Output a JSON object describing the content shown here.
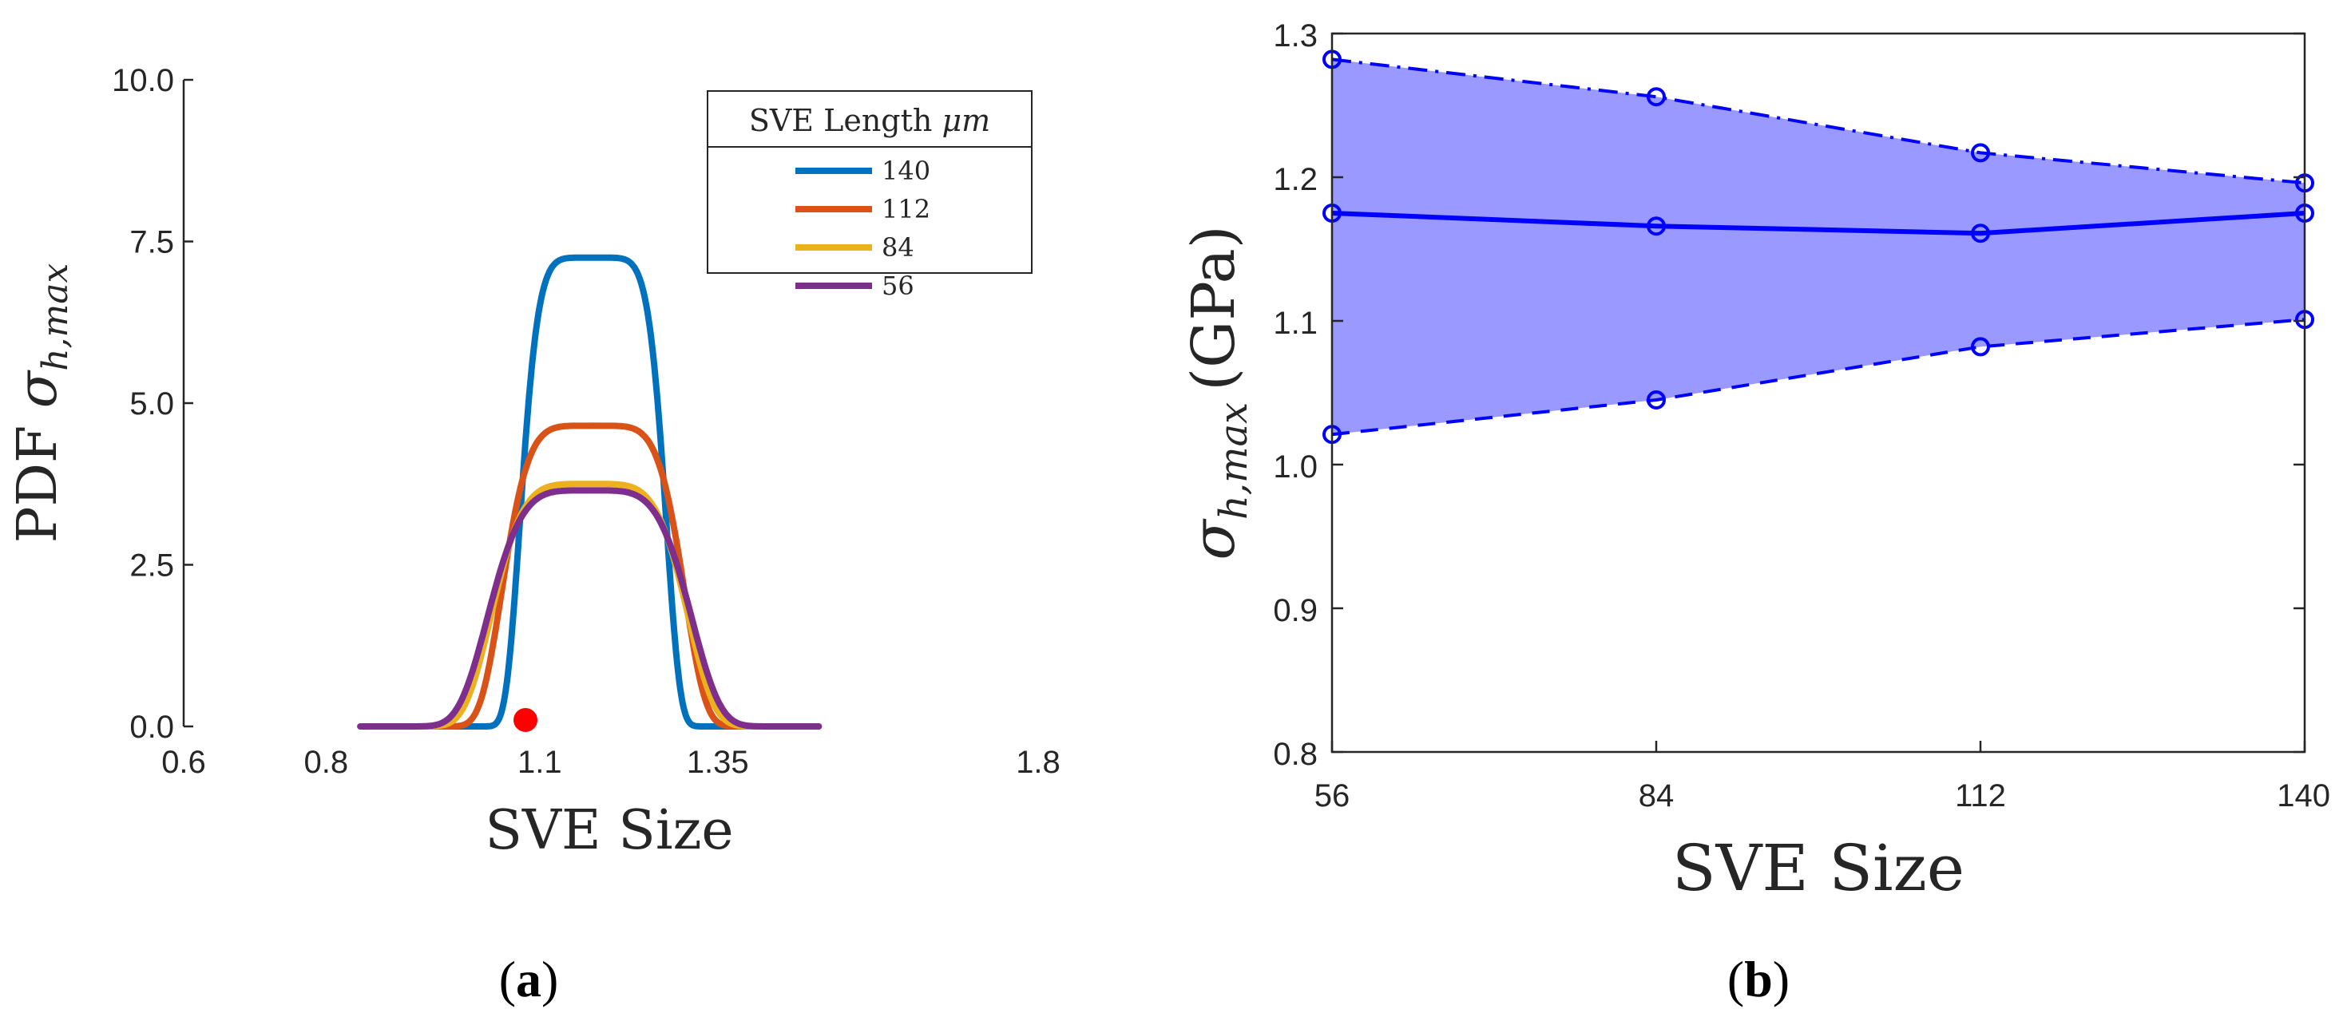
{
  "chart_data": [
    {
      "type": "line",
      "panel": "a",
      "panel_label": "a",
      "title": "",
      "xlabel": "SVE Size",
      "ylabel_prefix": "PDF ",
      "ylabel_symbol": "σ",
      "ylabel_subscript": "h,max",
      "xlim": [
        0.6,
        1.8
      ],
      "ylim": [
        0,
        10
      ],
      "xticks": [
        0.6,
        0.8,
        1.1,
        1.35,
        1.8
      ],
      "xtick_labels": [
        "0.6",
        "0.8",
        "1.1",
        "1.35",
        "1.8"
      ],
      "yticks": [
        0,
        2.5,
        5,
        7.5,
        10
      ],
      "ytick_labels": [
        "0.0",
        "2.5",
        "5.0",
        "7.5",
        "10.0"
      ],
      "legend": {
        "title_prefix": "SVE Length ",
        "title_unit": "μm",
        "placement": "top-right"
      },
      "series": [
        {
          "name": "140",
          "color": "#0072BD",
          "center": 1.175,
          "half_width": 0.1,
          "sharpness": 3.2,
          "peak": 7.25
        },
        {
          "name": "112",
          "color": "#D95319",
          "center": 1.175,
          "half_width": 0.125,
          "sharpness": 2.7,
          "peak": 4.65
        },
        {
          "name": "84",
          "color": "#EDB120",
          "center": 1.17,
          "half_width": 0.135,
          "sharpness": 2.4,
          "peak": 3.75
        },
        {
          "name": "56",
          "color": "#7E2F8E",
          "center": 1.17,
          "half_width": 0.14,
          "sharpness": 2.3,
          "peak": 3.65
        }
      ],
      "marker": {
        "x": 1.08,
        "y": 0.05,
        "color": "#FF0000"
      }
    },
    {
      "type": "area",
      "panel": "b",
      "panel_label": "b",
      "title": "",
      "xlabel": "SVE Size",
      "ylabel_symbol": "σ",
      "ylabel_subscript": "h,max",
      "ylabel_unit": "(GPa)",
      "categories": [
        "56",
        "84",
        "112",
        "140"
      ],
      "x": [
        56,
        84,
        112,
        140
      ],
      "xlim": [
        56,
        140
      ],
      "ylim": [
        0.8,
        1.3
      ],
      "yticks": [
        0.8,
        0.9,
        1.0,
        1.1,
        1.2,
        1.3
      ],
      "ytick_labels": [
        "0.8",
        "0.9",
        "1.0",
        "1.1",
        "1.2",
        "1.3"
      ],
      "series": [
        {
          "name": "upper",
          "style": "dash-dot",
          "values": [
            1.282,
            1.256,
            1.217,
            1.196
          ]
        },
        {
          "name": "mean",
          "style": "solid",
          "values": [
            1.175,
            1.166,
            1.161,
            1.175
          ]
        },
        {
          "name": "lower",
          "style": "dashed",
          "values": [
            1.021,
            1.045,
            1.082,
            1.101
          ]
        }
      ],
      "line_color": "#0000FF",
      "fill_color": "#9999FF"
    }
  ]
}
